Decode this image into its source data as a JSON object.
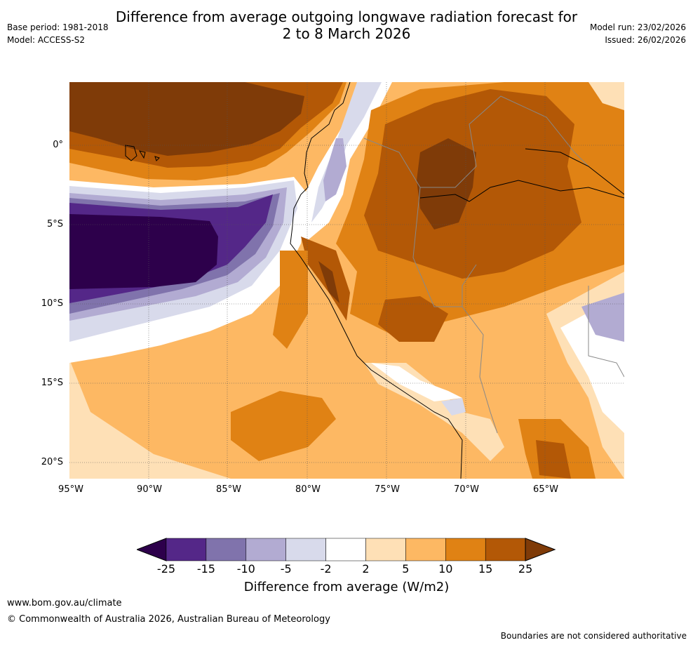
{
  "title": {
    "line1": "Difference from average outgoing longwave radiation forecast for",
    "line2": "2 to 8 March 2026"
  },
  "meta": {
    "base_period": "Base period: 1981-2018",
    "model": "Model: ACCESS-S2",
    "model_run": "Model run: 23/02/2026",
    "issued": "Issued: 26/02/2026"
  },
  "map": {
    "lon_labels": [
      "95°W",
      "90°W",
      "85°W",
      "80°W",
      "75°W",
      "70°W",
      "65°W"
    ],
    "lat_labels": [
      "0°",
      "5°S",
      "10°S",
      "15°S",
      "20°S"
    ],
    "lon_range": [
      -95,
      -60
    ],
    "lat_range": [
      4,
      -21
    ]
  },
  "colorbar": {
    "ticks": [
      "-25",
      "-15",
      "-10",
      "-5",
      "-2",
      "2",
      "5",
      "10",
      "15",
      "25"
    ],
    "colors": [
      "#2d004b",
      "#542788",
      "#8073ac",
      "#b2abd2",
      "#d8daeb",
      "#ffffff",
      "#fee0b6",
      "#fdb863",
      "#e08214",
      "#b35806",
      "#7f3b08"
    ],
    "label": "Difference from average (W/m2)"
  },
  "footer": {
    "url": "www.bom.gov.au/climate",
    "copyright": "© Commonwealth of Australia 2026, Australian Bureau of Meteorology",
    "disclaimer": "Boundaries are not considered authoritative"
  }
}
